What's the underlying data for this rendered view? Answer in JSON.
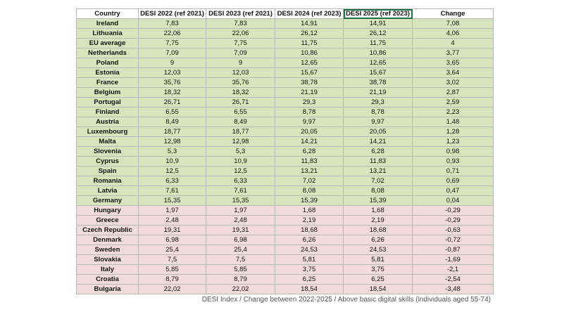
{
  "table": {
    "headers": [
      "Country",
      "DESI 2022 (ref 2021)",
      "DESI 2023 (ref 2021)",
      "DESI 2024 (ref 2023)",
      "DESI 2025 (ref 2023)",
      "Change"
    ],
    "rows": [
      [
        "Ireland",
        "7,83",
        "7,83",
        "14,91",
        "14,91",
        "7,08"
      ],
      [
        "Lithuania",
        "22,06",
        "22,06",
        "26,12",
        "26,12",
        "4,06"
      ],
      [
        "EU average",
        "7,75",
        "7,75",
        "11,75",
        "11,75",
        "4"
      ],
      [
        "Netherlands",
        "7,09",
        "7,09",
        "10,86",
        "10,86",
        "3,77"
      ],
      [
        "Poland",
        "9",
        "9",
        "12,65",
        "12,65",
        "3,65"
      ],
      [
        "Estonia",
        "12,03",
        "12,03",
        "15,67",
        "15,67",
        "3,64"
      ],
      [
        "France",
        "35,76",
        "35,76",
        "38,78",
        "38,78",
        "3,02"
      ],
      [
        "Belgium",
        "18,32",
        "18,32",
        "21,19",
        "21,19",
        "2,87"
      ],
      [
        "Portugal",
        "26,71",
        "26,71",
        "29,3",
        "29,3",
        "2,59"
      ],
      [
        "Finland",
        "6,55",
        "6,55",
        "8,78",
        "8,78",
        "2,23"
      ],
      [
        "Austria",
        "8,49",
        "8,49",
        "9,97",
        "9,97",
        "1,48"
      ],
      [
        "Luxembourg",
        "18,77",
        "18,77",
        "20,05",
        "20,05",
        "1,28"
      ],
      [
        "Malta",
        "12,98",
        "12,98",
        "14,21",
        "14,21",
        "1,23"
      ],
      [
        "Slovenia",
        "5,3",
        "5,3",
        "6,28",
        "6,28",
        "0,98"
      ],
      [
        "Cyprus",
        "10,9",
        "10,9",
        "11,83",
        "11,83",
        "0,93"
      ],
      [
        "Spain",
        "12,5",
        "12,5",
        "13,21",
        "13,21",
        "0,71"
      ],
      [
        "Romania",
        "6,33",
        "6,33",
        "7,02",
        "7,02",
        "0,69"
      ],
      [
        "Latvia",
        "7,61",
        "7,61",
        "8,08",
        "8,08",
        "0,47"
      ],
      [
        "Germany",
        "15,35",
        "15,35",
        "15,39",
        "15,39",
        "0,04"
      ],
      [
        "Hungary",
        "1,97",
        "1,97",
        "1,68",
        "1,68",
        "-0,29"
      ],
      [
        "Greece",
        "2,48",
        "2,48",
        "2,19",
        "2,19",
        "-0,29"
      ],
      [
        "Czech Republic",
        "19,31",
        "19,31",
        "18,68",
        "18,68",
        "-0,63"
      ],
      [
        "Denmark",
        "6,98",
        "6,98",
        "6,26",
        "6,26",
        "-0,72"
      ],
      [
        "Sweden",
        "25,4",
        "25,4",
        "24,53",
        "24,53",
        "-0,87"
      ],
      [
        "Slovakia",
        "7,5",
        "7,5",
        "5,81",
        "5,81",
        "-1,69"
      ],
      [
        "Italy",
        "5,85",
        "5,85",
        "3,75",
        "3,75",
        "-2,1"
      ],
      [
        "Croatia",
        "8,79",
        "8,79",
        "6,25",
        "6,25",
        "-2,54"
      ],
      [
        "Bulgaria",
        "22,02",
        "22,02",
        "18,54",
        "18,54",
        "-3,48"
      ]
    ]
  },
  "caption": "DESI Index / Change between 2022-2025 / Above basic digital skills (individuals aged 55-74)"
}
